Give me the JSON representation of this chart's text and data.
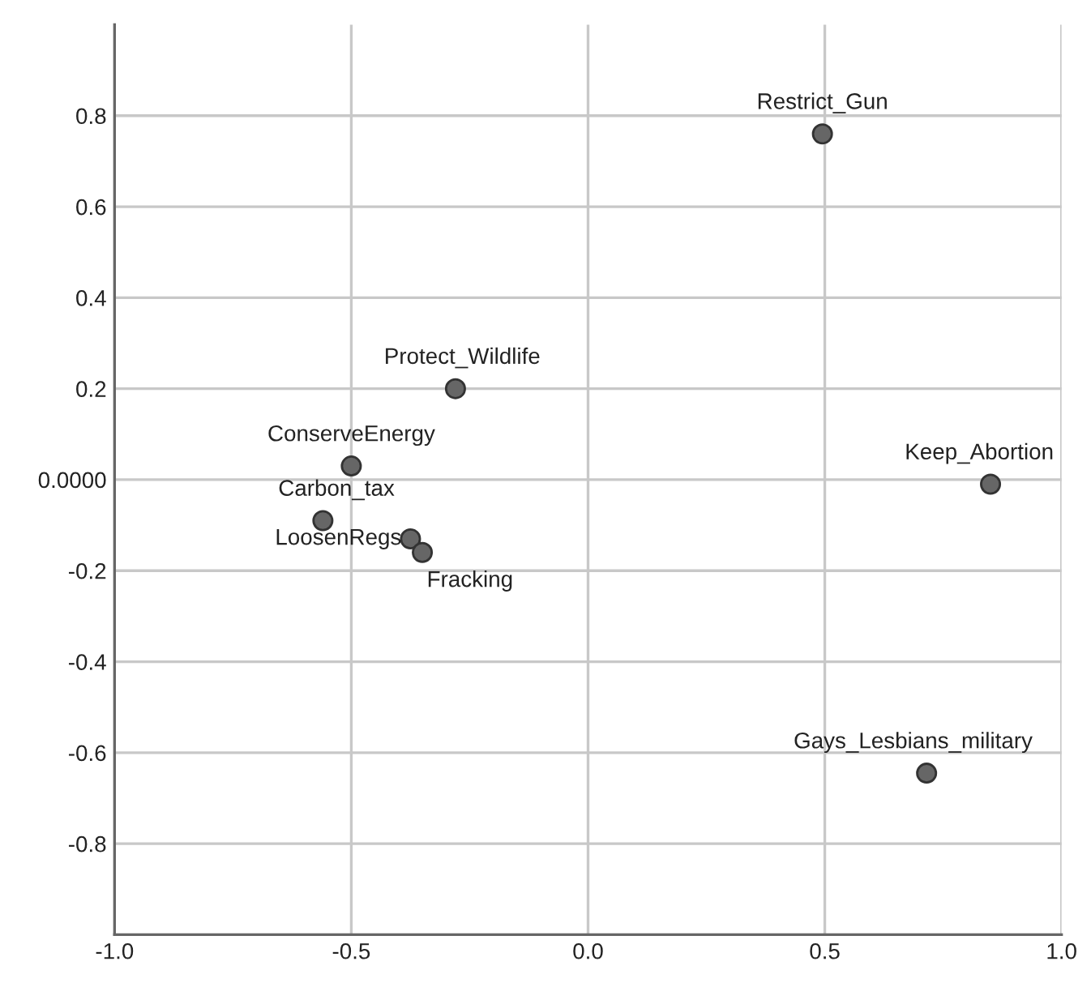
{
  "chart_data": {
    "type": "scatter",
    "x": [
      0.495,
      0.85,
      0.715,
      -0.28,
      -0.5,
      -0.56,
      -0.375,
      -0.35
    ],
    "values": [
      0.76,
      -0.01,
      -0.645,
      0.2,
      0.03,
      -0.09,
      -0.13,
      -0.16
    ],
    "color": "#666666",
    "marker": "circle",
    "annotations": [
      {
        "text": "Restrict_Gun",
        "x": 0.495,
        "y": 0.76
      },
      {
        "text": "Keep_Abortion",
        "x": 0.85,
        "y": -0.01
      },
      {
        "text": "Gays_Lesbians_military",
        "x": 0.715,
        "y": -0.645
      },
      {
        "text": "Protect_Wildlife",
        "x": -0.28,
        "y": 0.2
      },
      {
        "text": "ConserveEnergy",
        "x": -0.5,
        "y": 0.03
      },
      {
        "text": "Carbon_tax",
        "x": -0.56,
        "y": -0.09
      },
      {
        "text": "LoosenRegs",
        "x": -0.375,
        "y": -0.13
      },
      {
        "text": "Fracking",
        "x": -0.35,
        "y": -0.16
      }
    ],
    "xlim": [
      -1.0,
      1.0
    ],
    "ylim": [
      -1.0,
      1.0
    ],
    "xticks": [
      {
        "value": -1.0,
        "label": "-1.0"
      },
      {
        "value": -0.5,
        "label": "-0.5"
      },
      {
        "value": 0,
        "label": "0.0"
      },
      {
        "value": 0.5,
        "label": "0.5"
      },
      {
        "value": 1.0,
        "label": "1.0"
      }
    ],
    "yticks": [
      {
        "value": -0.8,
        "label": "-0.8"
      },
      {
        "value": -0.6,
        "label": "-0.6"
      },
      {
        "value": -0.4,
        "label": "-0.4"
      },
      {
        "value": -0.2,
        "label": "-0.2"
      },
      {
        "value": 0,
        "label": "0.0000"
      },
      {
        "value": 0.2,
        "label": "0.2"
      },
      {
        "value": 0.4,
        "label": "0.4"
      },
      {
        "value": 0.6,
        "label": "0.6"
      },
      {
        "value": 0.8,
        "label": "0.8"
      }
    ],
    "grid": true
  }
}
